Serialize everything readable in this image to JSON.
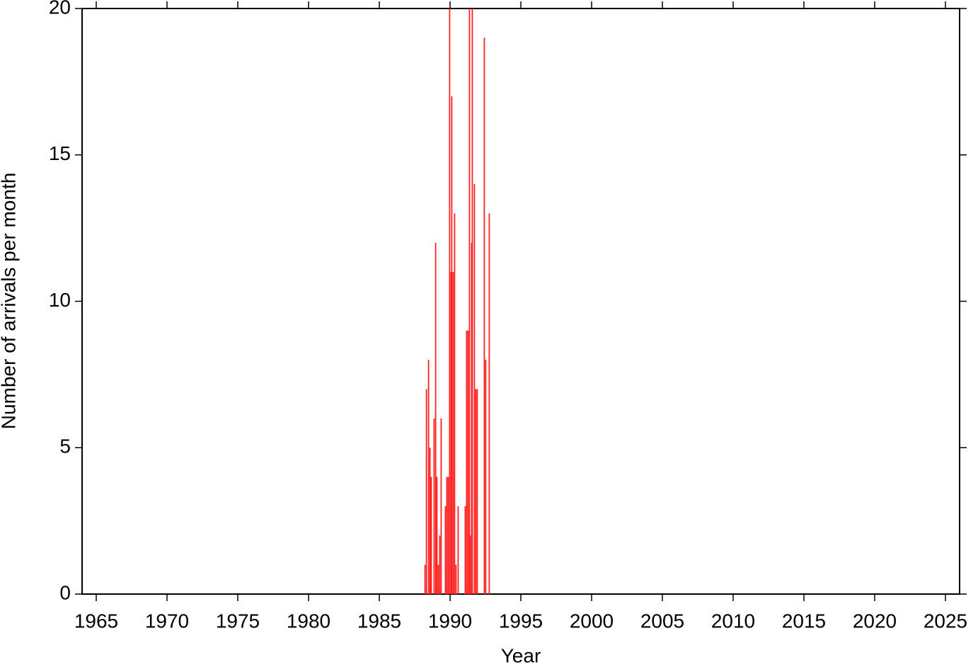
{
  "chart_data": {
    "type": "bar",
    "x_label": "Year",
    "y_label": "Number of arrivals per month",
    "x": [
      1988.23,
      1988.33,
      1988.48,
      1988.58,
      1988.67,
      1988.87,
      1988.98,
      1989.07,
      1989.17,
      1989.27,
      1989.37,
      1989.67,
      1989.77,
      1989.87,
      1989.97,
      1990.07,
      1990.12,
      1990.22,
      1990.32,
      1990.42,
      1990.57,
      1991.07,
      1991.17,
      1991.27,
      1991.37,
      1991.42,
      1991.52,
      1991.57,
      1991.72,
      1991.82,
      1991.92,
      1992.42,
      1992.52,
      1992.77
    ],
    "values": [
      1,
      7,
      8,
      5,
      4,
      6,
      12,
      4,
      1,
      2,
      6,
      3,
      4,
      4,
      20,
      11,
      17,
      11,
      13,
      1,
      3,
      3,
      9,
      9,
      20,
      2,
      12,
      20,
      14,
      7,
      7,
      19,
      8,
      13
    ],
    "color": "#ff2020",
    "xlim": [
      1964,
      2026
    ],
    "xticks": [
      1965,
      1970,
      1975,
      1980,
      1985,
      1990,
      1995,
      2000,
      2005,
      2010,
      2015,
      2020,
      2025
    ],
    "ylim": [
      0,
      20
    ],
    "yticks": [
      0,
      5,
      10,
      15,
      20
    ]
  }
}
